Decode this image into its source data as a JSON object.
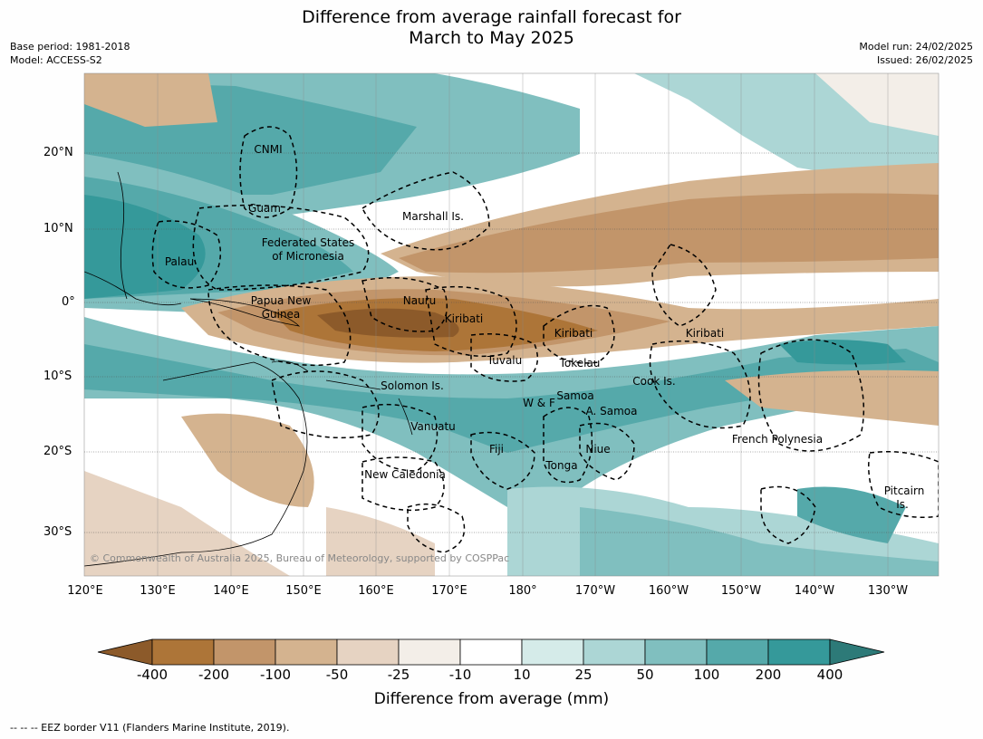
{
  "header": {
    "title_line1": "Difference from average rainfall forecast for",
    "title_line2": "March to May 2025",
    "base_period": "Base period: 1981-2018",
    "model": "Model: ACCESS-S2",
    "model_run": "Model run: 24/02/2025",
    "issued": "Issued: 26/02/2025"
  },
  "map": {
    "lat_labels": [
      "20°N",
      "10°N",
      "0°",
      "10°S",
      "20°S",
      "30°S"
    ],
    "lon_labels": [
      "120°E",
      "130°E",
      "140°E",
      "150°E",
      "160°E",
      "170°E",
      "180°",
      "170°W",
      "160°W",
      "150°W",
      "140°W",
      "130°W"
    ],
    "copyright": "© Commonwealth of Australia 2025, Bureau of Meteorology, supported by COSPPac",
    "regions": [
      {
        "name": "CNMI"
      },
      {
        "name": "Guam"
      },
      {
        "name": "Marshall Is."
      },
      {
        "name": "Federated States"
      },
      {
        "name": "of Micronesia"
      },
      {
        "name": "Palau"
      },
      {
        "name": "Papua New"
      },
      {
        "name": "Guinea"
      },
      {
        "name": "Nauru"
      },
      {
        "name": "Kiribati"
      },
      {
        "name": "Kiribati"
      },
      {
        "name": "Kiribati"
      },
      {
        "name": "Tuvalu"
      },
      {
        "name": "Tokelau"
      },
      {
        "name": "Solomon Is."
      },
      {
        "name": "Cook Is."
      },
      {
        "name": "Samoa"
      },
      {
        "name": "W & F"
      },
      {
        "name": "A. Samoa"
      },
      {
        "name": "Vanuatu"
      },
      {
        "name": "Fiji"
      },
      {
        "name": "Niue"
      },
      {
        "name": "French Polynesia"
      },
      {
        "name": "Tonga"
      },
      {
        "name": "New Caledonia"
      },
      {
        "name": "Pitcairn"
      },
      {
        "name": "Is."
      }
    ]
  },
  "colorbar": {
    "title": "Difference from average (mm)",
    "ticks": [
      "-400",
      "-200",
      "-100",
      "-50",
      "-25",
      "-10",
      "10",
      "25",
      "50",
      "100",
      "200",
      "400"
    ],
    "colors": [
      "#8c5a2a",
      "#ad7538",
      "#c2956a",
      "#d4b38f",
      "#e6d3c2",
      "#f3eee8",
      "#ffffff",
      "#d5ebe9",
      "#acd6d5",
      "#80bfbf",
      "#55a9aa",
      "#35999a",
      "#2d7a78"
    ]
  },
  "footnote": "--  --  -- EEZ border V11 (Flanders Marine Institute, 2019)."
}
